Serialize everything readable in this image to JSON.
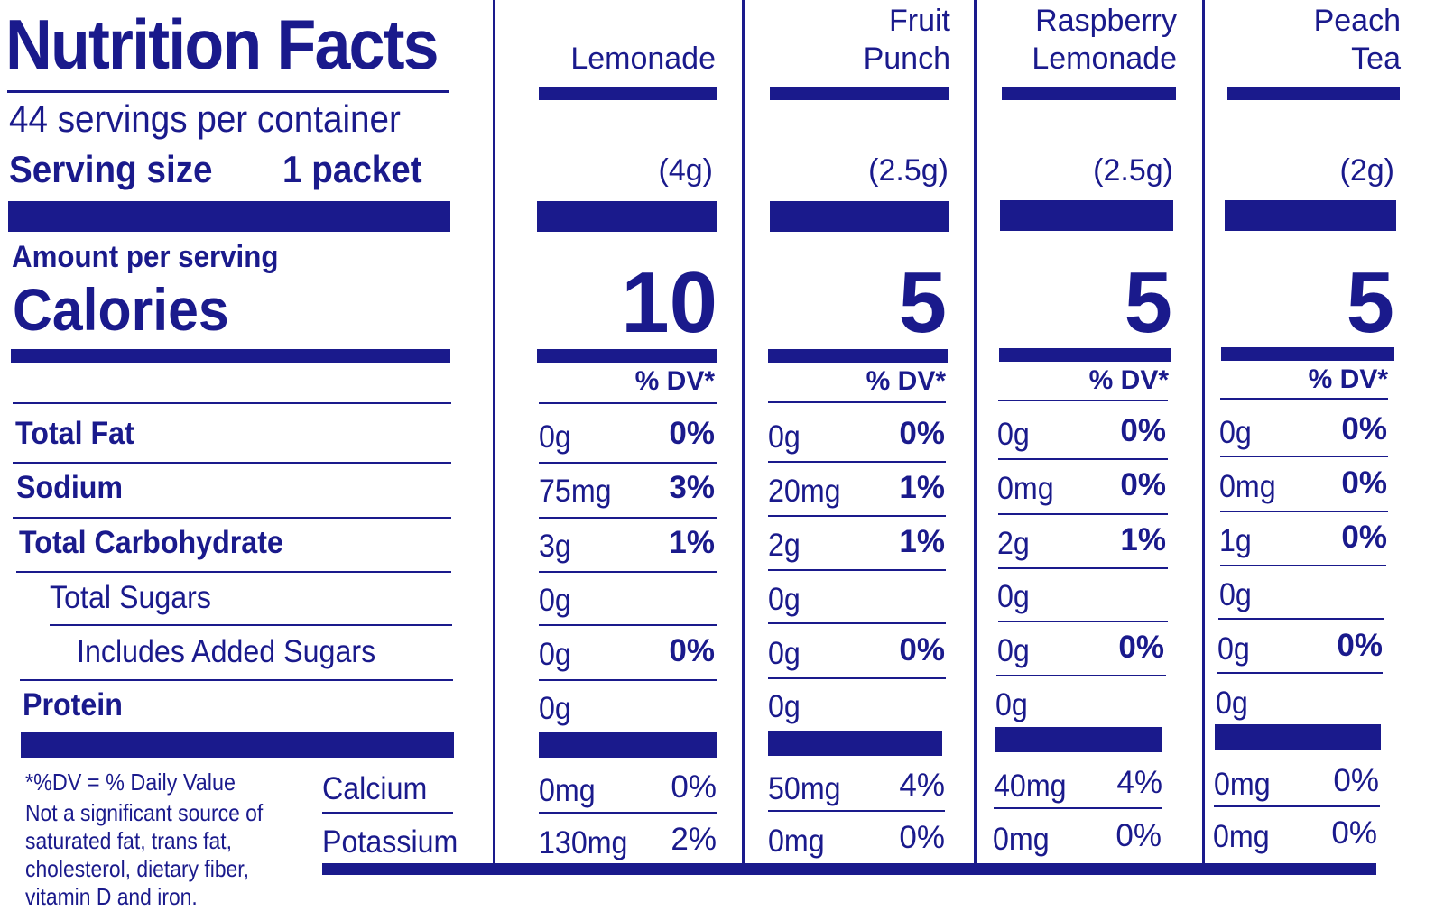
{
  "panel": {
    "title": "Nutrition Facts",
    "servings": "44 servings per container",
    "serving_size_label": "Serving size",
    "serving_size_value": "1 packet",
    "amount_per_serving": "Amount per serving",
    "calories_label": "Calories",
    "dv_header": "% DV*",
    "nutrients": [
      "Total Fat",
      "Sodium",
      "Total Carbohydrate",
      "Total Sugars",
      "Includes Added Sugars",
      "Protein"
    ],
    "minerals": [
      "Calcium",
      "Potassium"
    ],
    "dv_note": "*%DV = % Daily Value",
    "not_significant": "Not a significant source of saturated fat, trans fat, cholesterol, dietary fiber, vitamin D and iron."
  },
  "columns": [
    {
      "name": "Lemonade",
      "size": "(4g)",
      "calories": "10",
      "rows": [
        {
          "amt": "0g",
          "dv": "0%"
        },
        {
          "amt": "75mg",
          "dv": "3%"
        },
        {
          "amt": "3g",
          "dv": "1%"
        },
        {
          "amt": "0g",
          "dv": ""
        },
        {
          "amt": "0g",
          "dv": "0%"
        },
        {
          "amt": "0g",
          "dv": ""
        }
      ],
      "minerals": [
        {
          "amt": "0mg",
          "dv": "0%"
        },
        {
          "amt": "130mg",
          "dv": "2%"
        }
      ]
    },
    {
      "name": "Fruit\nPunch",
      "size": "(2.5g)",
      "calories": "5",
      "rows": [
        {
          "amt": "0g",
          "dv": "0%"
        },
        {
          "amt": "20mg",
          "dv": "1%"
        },
        {
          "amt": "2g",
          "dv": "1%"
        },
        {
          "amt": "0g",
          "dv": ""
        },
        {
          "amt": "0g",
          "dv": "0%"
        },
        {
          "amt": "0g",
          "dv": ""
        }
      ],
      "minerals": [
        {
          "amt": "50mg",
          "dv": "4%"
        },
        {
          "amt": "0mg",
          "dv": "0%"
        }
      ]
    },
    {
      "name": "Raspberry\nLemonade",
      "size": "(2.5g)",
      "calories": "5",
      "rows": [
        {
          "amt": "0g",
          "dv": "0%"
        },
        {
          "amt": "0mg",
          "dv": "0%"
        },
        {
          "amt": "2g",
          "dv": "1%"
        },
        {
          "amt": "0g",
          "dv": ""
        },
        {
          "amt": "0g",
          "dv": "0%"
        },
        {
          "amt": "0g",
          "dv": ""
        }
      ],
      "minerals": [
        {
          "amt": "40mg",
          "dv": "4%"
        },
        {
          "amt": "0mg",
          "dv": "0%"
        }
      ]
    },
    {
      "name": "Peach\nTea",
      "size": "(2g)",
      "calories": "5",
      "rows": [
        {
          "amt": "0g",
          "dv": "0%"
        },
        {
          "amt": "0mg",
          "dv": "0%"
        },
        {
          "amt": "1g",
          "dv": "0%"
        },
        {
          "amt": "0g",
          "dv": ""
        },
        {
          "amt": "0g",
          "dv": "0%"
        },
        {
          "amt": "0g",
          "dv": ""
        }
      ],
      "minerals": [
        {
          "amt": "0mg",
          "dv": "0%"
        },
        {
          "amt": "0mg",
          "dv": "0%"
        }
      ]
    }
  ]
}
